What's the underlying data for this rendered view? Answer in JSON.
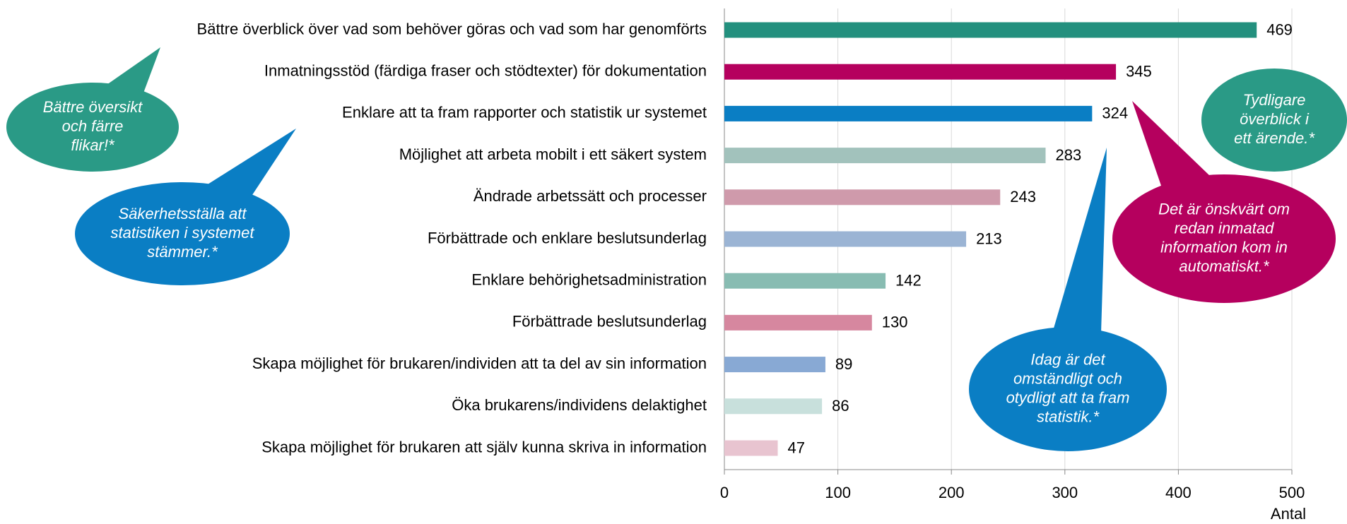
{
  "chart_data": {
    "type": "barh",
    "categories": [
      "Bättre överblick över vad som behöver göras och vad som har genomförts",
      "Inmatningsstöd (färdiga fraser och stödtexter) för dokumentation",
      "Enklare att ta fram rapporter och statistik ur systemet",
      "Möjlighet att arbeta mobilt i ett säkert system",
      "Ändrade arbetssätt och processer",
      "Förbättrade och enklare beslutsunderlag",
      "Enklare behörighetsadministration",
      "Förbättrade beslutsunderlag",
      "Skapa möjlighet för brukaren/individen att ta del av sin information",
      "Öka brukarens/individens delaktighet",
      "Skapa möjlighet för brukaren att själv kunna skriva in information"
    ],
    "values": [
      469,
      345,
      324,
      283,
      243,
      213,
      142,
      130,
      89,
      86,
      47
    ],
    "colors": [
      "#23907e",
      "#b5005e",
      "#0a7ec4",
      "#a2c2bc",
      "#cf9aab",
      "#9bb4d4",
      "#88bcb2",
      "#d6879f",
      "#88a9d4",
      "#c8e0dc",
      "#e8c4d0"
    ],
    "xlabel": "Antal",
    "xlim": [
      0,
      500
    ],
    "xticks": [
      0,
      100,
      200,
      300,
      400,
      500
    ],
    "grid": true,
    "annotations": [
      {
        "lines": [
          "Bättre översikt",
          "och färre",
          "flikar!*"
        ],
        "color": "#2a9a86"
      },
      {
        "lines": [
          "Säkerhetsställa att",
          "statistiken i systemet",
          "stämmer.*"
        ],
        "color": "#0a7ec4"
      },
      {
        "lines": [
          "Tydligare",
          "överblick i",
          "ett ärende.*"
        ],
        "color": "#2a9a86"
      },
      {
        "lines": [
          "Det är önskvärt om",
          "redan inmatad",
          "information kom in",
          "automatiskt.*"
        ],
        "color": "#b5005e"
      },
      {
        "lines": [
          "Idag är det",
          "omständligt och",
          "otydligt att ta fram",
          "statistik.*"
        ],
        "color": "#0a7ec4"
      }
    ]
  }
}
